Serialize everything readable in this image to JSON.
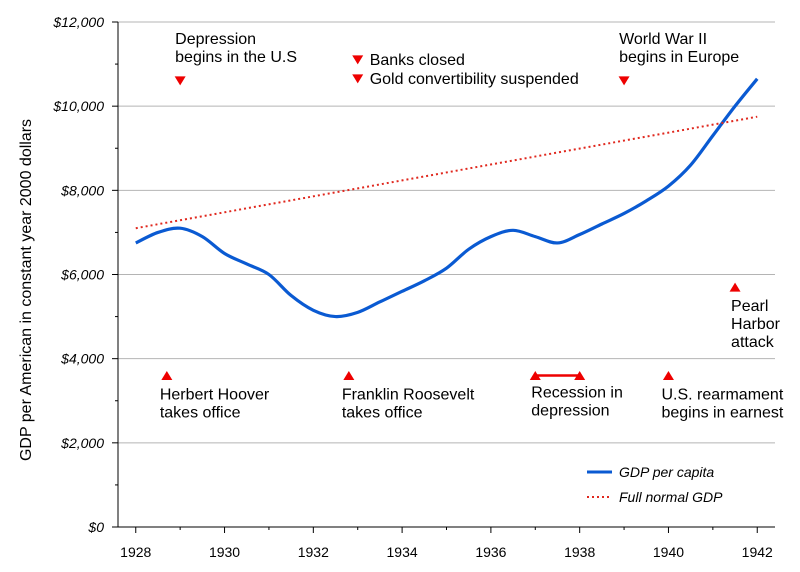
{
  "chart_data": {
    "type": "line",
    "ylabel": "GDP per American in constant year 2000 dollars",
    "xlabel": "",
    "xlim": [
      1927.6,
      1942.4
    ],
    "ylim": [
      0,
      12000
    ],
    "grid": true,
    "legend_placement": "bottom-right",
    "x_ticks": [
      1928,
      1930,
      1932,
      1934,
      1936,
      1938,
      1940,
      1942
    ],
    "x_tick_labels": [
      "1928",
      "1930",
      "1932",
      "1934",
      "1936",
      "1938",
      "1940",
      "1942"
    ],
    "y_ticks": [
      0,
      2000,
      4000,
      6000,
      8000,
      10000,
      12000
    ],
    "y_tick_labels": [
      "$0",
      "$2,000",
      "$4,000",
      "$6,000",
      "$8,000",
      "$10,000",
      "$12,000"
    ],
    "series": [
      {
        "name": "GDP per capita",
        "color": "#0a5ad2",
        "style": "solid",
        "x": [
          1928.0,
          1928.5,
          1929.0,
          1929.5,
          1930.0,
          1930.5,
          1931.0,
          1931.5,
          1932.0,
          1932.5,
          1933.0,
          1933.5,
          1934.0,
          1934.5,
          1935.0,
          1935.5,
          1936.0,
          1936.5,
          1937.0,
          1937.5,
          1938.0,
          1938.5,
          1939.0,
          1939.5,
          1940.0,
          1940.5,
          1941.0,
          1941.5,
          1942.0
        ],
        "values": [
          6750,
          7000,
          7100,
          6900,
          6500,
          6250,
          6000,
          5500,
          5150,
          5000,
          5100,
          5350,
          5600,
          5850,
          6150,
          6600,
          6900,
          7050,
          6900,
          6750,
          6950,
          7200,
          7450,
          7750,
          8100,
          8600,
          9300,
          10000,
          10650
        ]
      },
      {
        "name": "Full normal GDP",
        "color": "#e0281e",
        "style": "dotted",
        "x": [
          1928.0,
          1942.0
        ],
        "values": [
          7100,
          9750
        ]
      }
    ],
    "annotations": [
      {
        "id": "depression",
        "lines": [
          "Depression",
          "begins in the U.S"
        ],
        "marker": "down",
        "year": 1929.0,
        "value": 10600
      },
      {
        "id": "banks",
        "lines": [
          "Banks closed"
        ],
        "marker": "down",
        "year": 1933.0,
        "value": 11100
      },
      {
        "id": "gold",
        "lines": [
          "Gold convertibility suspended"
        ],
        "marker": "down",
        "year": 1933.0,
        "value": 10650
      },
      {
        "id": "wwii",
        "lines": [
          "World War II",
          "begins in Europe"
        ],
        "marker": "down",
        "year": 1939.0,
        "value": 10600
      },
      {
        "id": "pearl",
        "lines": [
          "Pearl",
          "Harbor",
          "attack"
        ],
        "marker": "up",
        "year": 1941.5,
        "value": 5700
      },
      {
        "id": "hoover",
        "lines": [
          "Herbert Hoover",
          "takes office"
        ],
        "marker": "up",
        "year": 1928.7,
        "value": 3600
      },
      {
        "id": "roosevelt",
        "lines": [
          "Franklin Roosevelt",
          "takes office"
        ],
        "marker": "up",
        "year": 1932.8,
        "value": 3600
      },
      {
        "id": "recession",
        "lines": [
          "Recession in",
          "depression"
        ],
        "marker": "range",
        "year": 1937.0,
        "year_end": 1938.0,
        "value": 3600
      },
      {
        "id": "rearmament",
        "lines": [
          "U.S. rearmament",
          "begins in earnest"
        ],
        "marker": "up",
        "year": 1940.0,
        "value": 3600
      }
    ]
  },
  "colors": {
    "gdp_line": "#0a5ad2",
    "normal_line": "#e0281e",
    "marker": "#ee0000",
    "grid": "#b4b4b4",
    "axis": "#000000"
  }
}
